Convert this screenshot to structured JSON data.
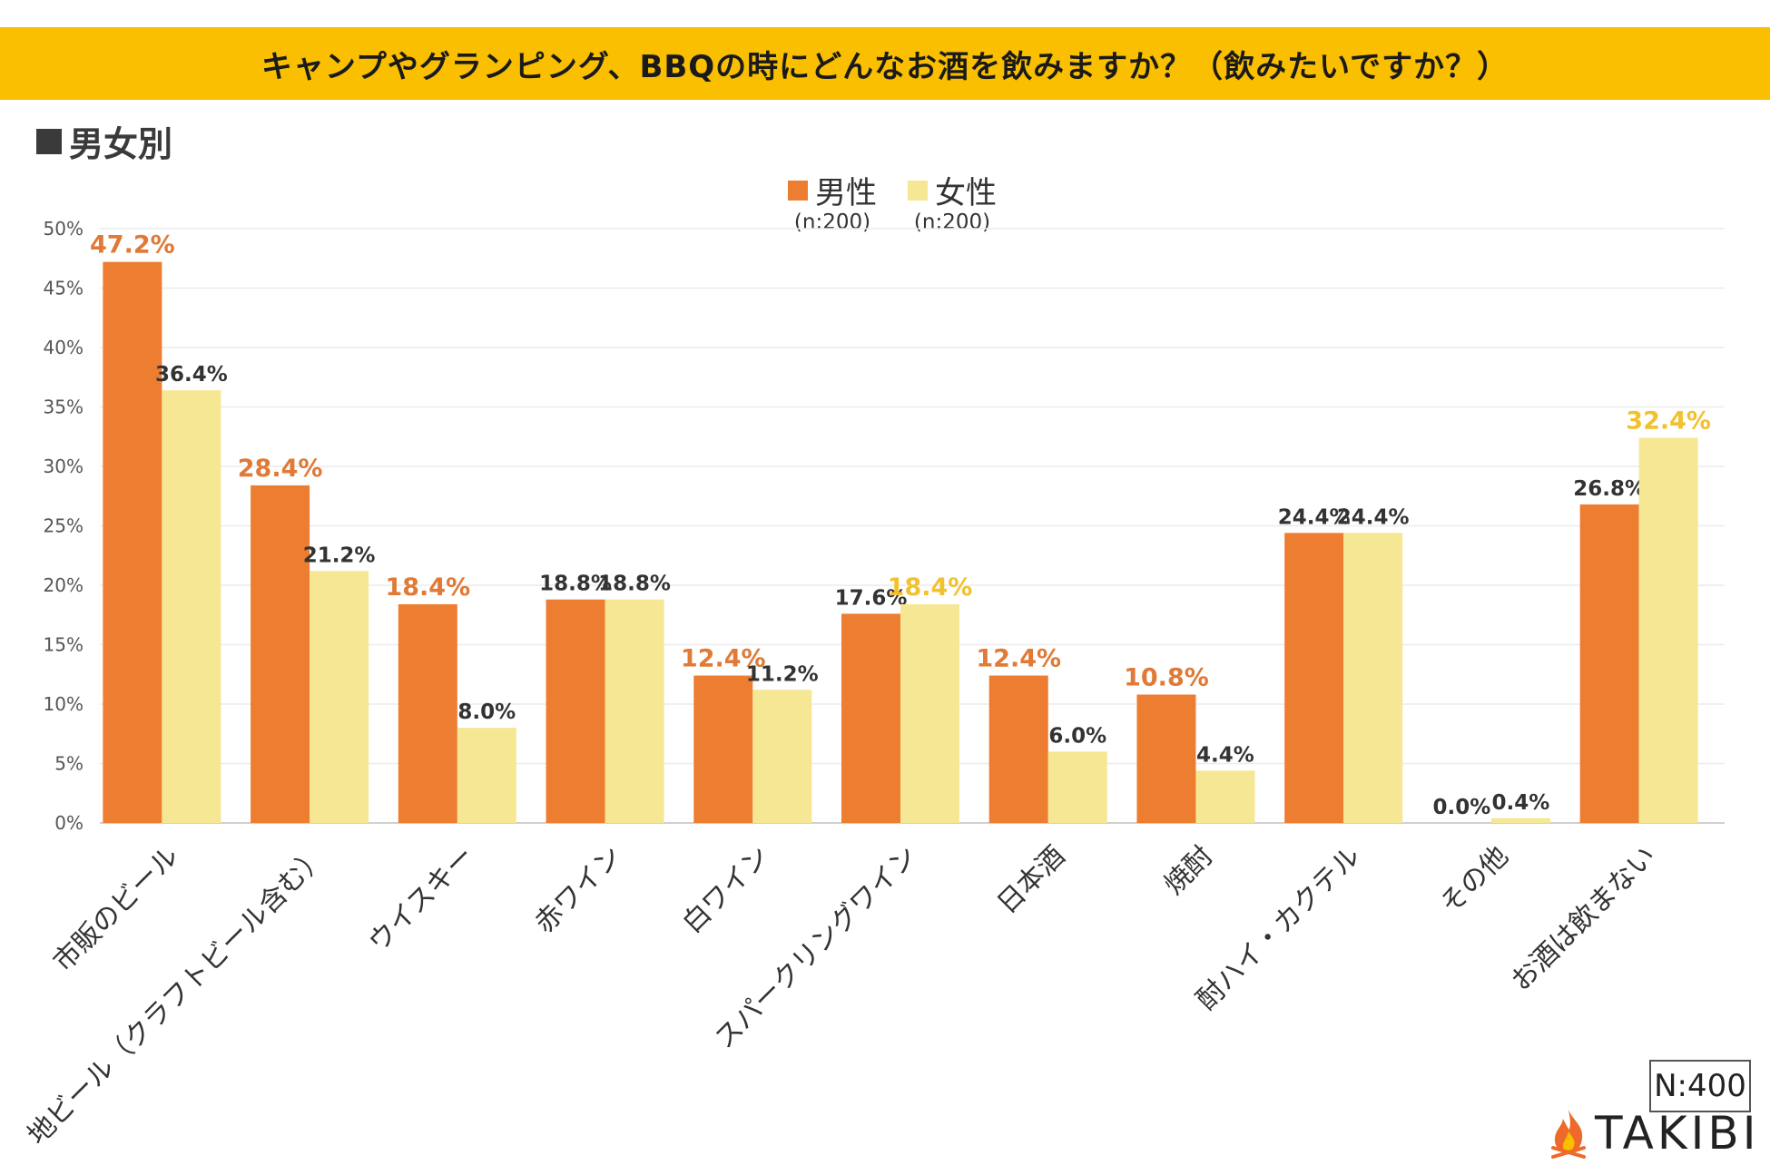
{
  "title": "キャンプやグランピング、BBQの時にどんなお酒を飲みますか？（飲みたいですか？）",
  "section_label": "男女別",
  "legend": [
    {
      "name": "男性",
      "n": "(n:200)",
      "color": "#ed7d31"
    },
    {
      "name": "女性",
      "n": "(n:200)",
      "color": "#f5e793"
    }
  ],
  "n_total": "N:400",
  "logo_text": "TAKIBI",
  "chart_data": {
    "type": "bar",
    "title": "キャンプやグランピング、BBQの時にどんなお酒を飲みますか？（飲みたいですか？）",
    "categories": [
      "市販のビール",
      "地ビール（クラフトビール含む）",
      "ウイスキー",
      "赤ワイン",
      "白ワイン",
      "スパークリングワイン",
      "日本酒",
      "焼酎",
      "酎ハイ・カクテル",
      "その他",
      "お酒は飲まない"
    ],
    "series": [
      {
        "name": "男性",
        "color": "#ed7d31",
        "values": [
          47.2,
          28.4,
          18.4,
          18.8,
          12.4,
          17.6,
          12.4,
          10.8,
          24.4,
          0.0,
          26.8
        ],
        "labels": [
          "47.2%",
          "28.4%",
          "18.4%",
          "18.8%",
          "12.4%",
          "17.6%",
          "12.4%",
          "10.8%",
          "24.4%",
          "0.0%",
          "26.8%"
        ],
        "highlight": [
          true,
          true,
          true,
          false,
          true,
          false,
          true,
          true,
          false,
          false,
          false
        ],
        "highlight_color": "#e07a36"
      },
      {
        "name": "女性",
        "color": "#f5e793",
        "values": [
          36.4,
          21.2,
          8.0,
          18.8,
          11.2,
          18.4,
          6.0,
          4.4,
          24.4,
          0.4,
          32.4
        ],
        "labels": [
          "36.4%",
          "21.2%",
          "8.0%",
          "18.8%",
          "11.2%",
          "18.4%",
          "6.0%",
          "4.4%",
          "24.4%",
          "0.4%",
          "32.4%"
        ],
        "highlight": [
          false,
          false,
          false,
          false,
          false,
          true,
          false,
          false,
          false,
          false,
          true
        ],
        "highlight_color": "#f2c12e"
      }
    ],
    "ylim": [
      0,
      50
    ],
    "yticks": [
      "0%",
      "5%",
      "10%",
      "15%",
      "20%",
      "25%",
      "30%",
      "35%",
      "40%",
      "45%",
      "50%"
    ],
    "xlabel": "",
    "ylabel": "",
    "grid": true
  }
}
